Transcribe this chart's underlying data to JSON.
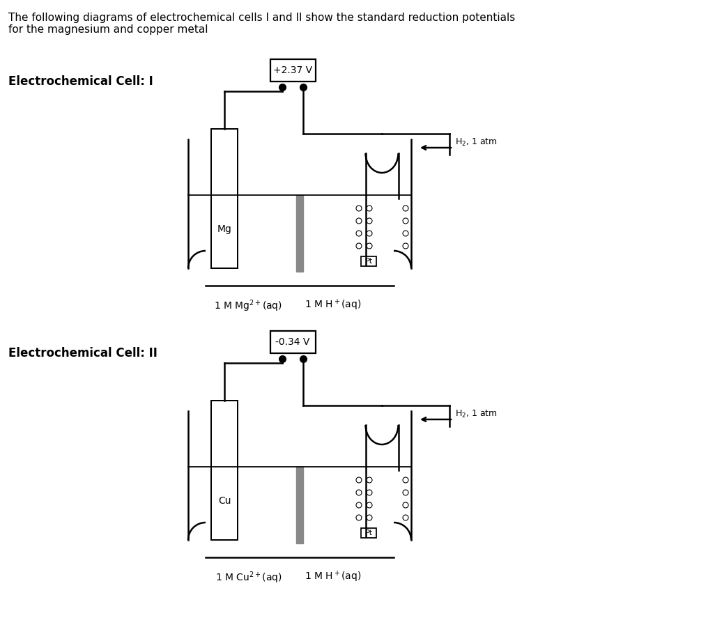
{
  "title_text": "The following diagrams of electrochemical cells I and II show the standard reduction potentials\nfor the magnesium and copper metal",
  "cell1_title": "Electrochemical Cell: I",
  "cell2_title": "Electrochemical Cell: II",
  "cell1_voltage": "+2.37 V",
  "cell2_voltage": "-0.34 V",
  "cell1_metal": "Mg",
  "cell2_metal": "Cu",
  "cell1_left_label": "1 M Mg$^{2+}$(aq)",
  "cell1_right_label": "1 M H$^+$(aq)",
  "cell2_left_label": "1 M Cu$^{2+}$(aq)",
  "cell2_right_label": "1 M H$^+$(aq)",
  "h2_label": "H$_2$, 1 atm",
  "pt_label": "Pt",
  "bg_color": "#ffffff",
  "line_color": "#000000",
  "salt_bridge_color": "#888888",
  "font_size_title": 11,
  "font_size_cell_title": 12,
  "font_size_labels": 10
}
